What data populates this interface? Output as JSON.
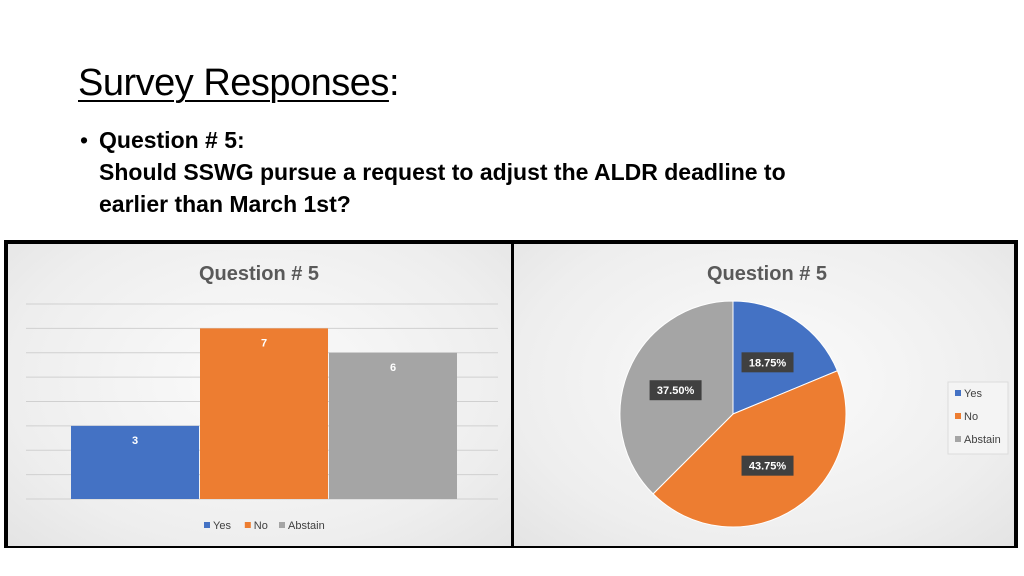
{
  "slide": {
    "title": "Survey Responses",
    "title_suffix": ":",
    "bullet": "•",
    "question_line1": "Question # 5:",
    "question_line2": "Should SSWG pursue a request to adjust the ALDR deadline to",
    "question_line3": "earlier than March 1st?"
  },
  "chart_data": [
    {
      "type": "bar",
      "title": "Question # 5",
      "categories": [
        "Yes",
        "No",
        "Abstain"
      ],
      "values": [
        3,
        7,
        6
      ],
      "data_labels": [
        "3",
        "7",
        "6"
      ],
      "colors": [
        "#4472c4",
        "#ed7d31",
        "#a5a5a5"
      ],
      "ylim": [
        0,
        8
      ],
      "grid": true,
      "legend": "bottom",
      "xlabel": "",
      "ylabel": ""
    },
    {
      "type": "pie",
      "title": "Question # 5",
      "categories": [
        "Yes",
        "No",
        "Abstain"
      ],
      "values": [
        18.75,
        43.75,
        37.5
      ],
      "data_labels": [
        "18.75%",
        "43.75%",
        "37.50%"
      ],
      "colors": [
        "#4472c4",
        "#ed7d31",
        "#a5a5a5"
      ],
      "legend": "right"
    }
  ]
}
